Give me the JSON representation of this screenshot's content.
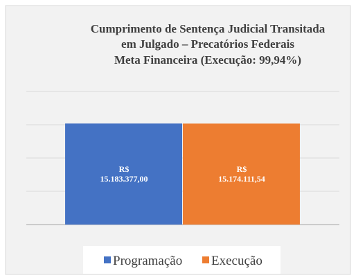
{
  "chart_data": {
    "type": "bar",
    "title": [
      "Cumprimento de Sentença Judicial Transitada",
      "em Julgado – Precatórios Federais",
      "Meta Financeira (Execução: 99,94%)"
    ],
    "categories": [
      null
    ],
    "series": [
      {
        "name": "Programação",
        "color": "#4472c4",
        "values": [
          15183377.0
        ],
        "value_labels": [
          "R$\n15.183.377,00"
        ]
      },
      {
        "name": "Execução",
        "color": "#ed7d31",
        "values": [
          15174111.54
        ],
        "value_labels": [
          "R$\n15.174.111,54"
        ]
      }
    ],
    "ylim": [
      0,
      20000000
    ],
    "yticks": [
      0,
      5000000,
      10000000,
      15000000,
      20000000
    ],
    "grid": true,
    "legend": "bottom"
  }
}
